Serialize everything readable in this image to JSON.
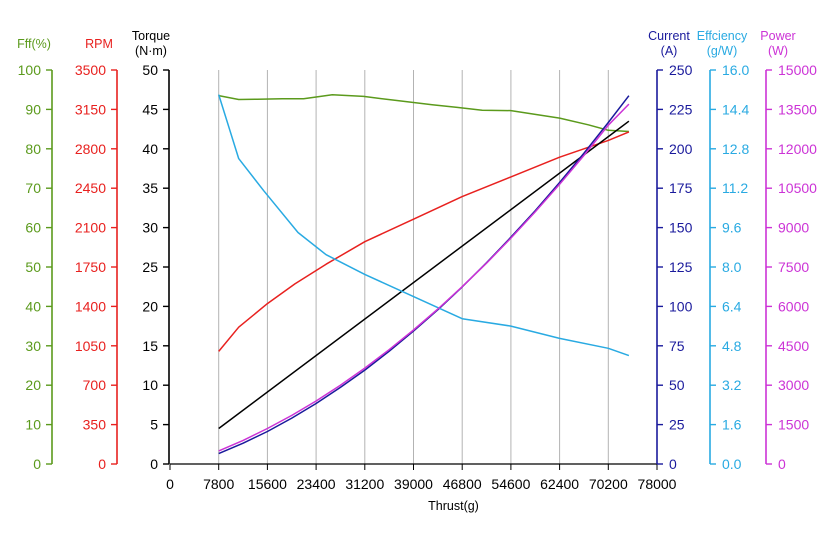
{
  "chart_data": {
    "type": "line",
    "xlabel": "Thrust(g)",
    "x_ticks": [
      0,
      7800,
      15600,
      23400,
      31200,
      39000,
      46800,
      54600,
      62400,
      70200,
      78000
    ],
    "grid": "vertical",
    "axes": [
      {
        "key": "fff",
        "title_lines": [
          "Fff(%)"
        ],
        "side": "left",
        "color": "#5b9a1c",
        "min": 0,
        "max": 100,
        "ticks": [
          "0",
          "10",
          "20",
          "30",
          "40",
          "50",
          "60",
          "70",
          "80",
          "90",
          "100"
        ]
      },
      {
        "key": "rpm",
        "title_lines": [
          "RPM"
        ],
        "side": "left",
        "color": "#e8211f",
        "min": 0,
        "max": 3500,
        "ticks": [
          "0",
          "350",
          "700",
          "1050",
          "1400",
          "1750",
          "2100",
          "2450",
          "2800",
          "3150",
          "3500"
        ]
      },
      {
        "key": "torque",
        "title_lines": [
          "Torque",
          "(N·m)"
        ],
        "side": "left",
        "color": "#000000",
        "min": 0,
        "max": 50,
        "ticks": [
          "0",
          "5",
          "10",
          "15",
          "20",
          "25",
          "30",
          "35",
          "40",
          "45",
          "50"
        ]
      },
      {
        "key": "current",
        "title_lines": [
          "Current",
          "(A)"
        ],
        "side": "right",
        "color": "#1a1a9c",
        "min": 0,
        "max": 250,
        "ticks": [
          "0",
          "25",
          "50",
          "75",
          "100",
          "125",
          "150",
          "175",
          "200",
          "225",
          "250"
        ]
      },
      {
        "key": "eff",
        "title_lines": [
          "Effciency",
          "(g/W)"
        ],
        "side": "right",
        "color": "#29aae2",
        "min": 0,
        "max": 16,
        "ticks": [
          "0.0",
          "1.6",
          "3.2",
          "4.8",
          "6.4",
          "8.0",
          "9.6",
          "11.2",
          "12.8",
          "14.4",
          "16.0"
        ]
      },
      {
        "key": "power",
        "title_lines": [
          "Power",
          "(W)"
        ],
        "side": "right",
        "color": "#cc33d6",
        "min": 0,
        "max": 15000,
        "ticks": [
          "0",
          "1500",
          "3000",
          "4500",
          "6000",
          "7500",
          "9000",
          "10500",
          "12000",
          "13500",
          "15000"
        ]
      }
    ],
    "series": [
      {
        "axis": "fff",
        "color": "#5b9a1c",
        "x": [
          7800,
          11000,
          14000,
          18000,
          21400,
          26000,
          31000,
          36000,
          42000,
          46000,
          50000,
          54600,
          62400,
          67000,
          70200,
          73500
        ],
        "y": [
          93.5,
          92.5,
          92.6,
          92.7,
          92.7,
          93.7,
          93.3,
          92.3,
          91.2,
          90.5,
          89.8,
          89.7,
          87.8,
          86.1,
          84.7,
          84.4
        ]
      },
      {
        "axis": "rpm",
        "color": "#e8211f",
        "x": [
          7800,
          11000,
          15600,
          20000,
          25000,
          31200,
          39000,
          46800,
          54600,
          62400,
          70200,
          73500
        ],
        "y": [
          1000,
          1215,
          1425,
          1600,
          1775,
          1975,
          2175,
          2375,
          2550,
          2725,
          2875,
          2950
        ]
      },
      {
        "axis": "torque",
        "color": "#000000",
        "x": [
          7800,
          73500
        ],
        "y": [
          4.5,
          43.5
        ]
      },
      {
        "axis": "current",
        "color": "#1a1a9c",
        "x": [
          7800,
          11700,
          15600,
          19500,
          23400,
          27300,
          31200,
          35100,
          39000,
          42900,
          46800,
          50700,
          54600,
          58500,
          62400,
          66300,
          70200,
          73500
        ],
        "y": [
          6.6,
          13.2,
          20.6,
          29.1,
          38.4,
          48.6,
          59.6,
          71.5,
          84.3,
          97.9,
          112.4,
          127.7,
          143.9,
          160.8,
          178.6,
          197.3,
          216.7,
          233.7
        ]
      },
      {
        "axis": "eff",
        "color": "#29aae2",
        "x": [
          7800,
          11000,
          15000,
          20500,
          25000,
          31200,
          39000,
          46800,
          54600,
          62400,
          70200,
          73500
        ],
        "y": [
          15.0,
          12.4,
          11.1,
          9.4,
          8.5,
          7.7,
          6.8,
          5.9,
          5.6,
          5.1,
          4.7,
          4.4
        ]
      },
      {
        "axis": "power",
        "color": "#cc33d6",
        "x": [
          7800,
          11700,
          15600,
          19500,
          23400,
          27300,
          31200,
          35100,
          39000,
          42900,
          46800,
          50700,
          54600,
          58500,
          62400,
          66300,
          70200,
          73500
        ],
        "y": [
          500,
          900,
          1350,
          1850,
          2400,
          3000,
          3650,
          4350,
          5100,
          5900,
          6750,
          7650,
          8600,
          9600,
          10650,
          11750,
          12900,
          13700
        ]
      }
    ]
  }
}
